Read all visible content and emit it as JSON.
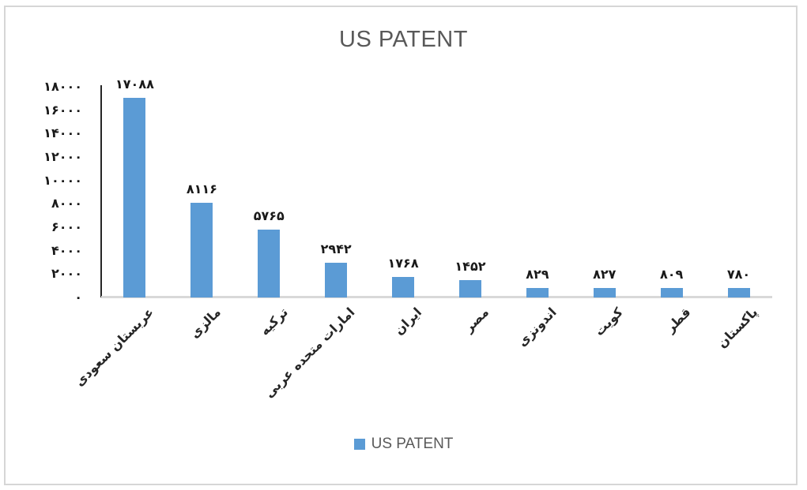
{
  "title": "US PATENT",
  "legend": {
    "label": "US PATENT",
    "swatch_color": "#5B9BD5"
  },
  "colors": {
    "bar": "#5B9BD5",
    "title_text": "#595959",
    "axis_line": "#262626",
    "baseline": "#d9d9d9",
    "label_text": "#1a1a1a",
    "frame_border": "#d6d6d6"
  },
  "chart_data": {
    "type": "bar",
    "title": "US PATENT",
    "series_name": "US PATENT",
    "categories": [
      "عربستان سعودی",
      "مالزی",
      "ترکیه",
      "امارات متحده عربی",
      "ایران",
      "مصر",
      "اندونزی",
      "کویت",
      "قطر",
      "پاکستان"
    ],
    "values": [
      17088,
      8116,
      5765,
      2942,
      1768,
      1452,
      829,
      827,
      809,
      780
    ],
    "bar_labels": [
      "۱۷۰۸۸",
      "۸۱۱۶",
      "۵۷۶۵",
      "۲۹۴۲",
      "۱۷۶۸",
      "۱۴۵۲",
      "۸۲۹",
      "۸۲۷",
      "۸۰۹",
      "۷۸۰"
    ],
    "y_ticks": [
      {
        "value": 18000,
        "label": "۱۸۰۰۰"
      },
      {
        "value": 16000,
        "label": "۱۶۰۰۰"
      },
      {
        "value": 14000,
        "label": "۱۴۰۰۰"
      },
      {
        "value": 12000,
        "label": "۱۲۰۰۰"
      },
      {
        "value": 10000,
        "label": "۱۰۰۰۰"
      },
      {
        "value": 8000,
        "label": "۸۰۰۰"
      },
      {
        "value": 6000,
        "label": "۶۰۰۰"
      },
      {
        "value": 4000,
        "label": "۴۰۰۰"
      },
      {
        "value": 2000,
        "label": "۲۰۰۰"
      },
      {
        "value": 0,
        "label": "۰"
      }
    ],
    "xlabel": "",
    "ylabel": "",
    "ylim": [
      0,
      18000
    ],
    "grid": false,
    "legend_position": "bottom",
    "bar_color": "#5B9BD5"
  }
}
